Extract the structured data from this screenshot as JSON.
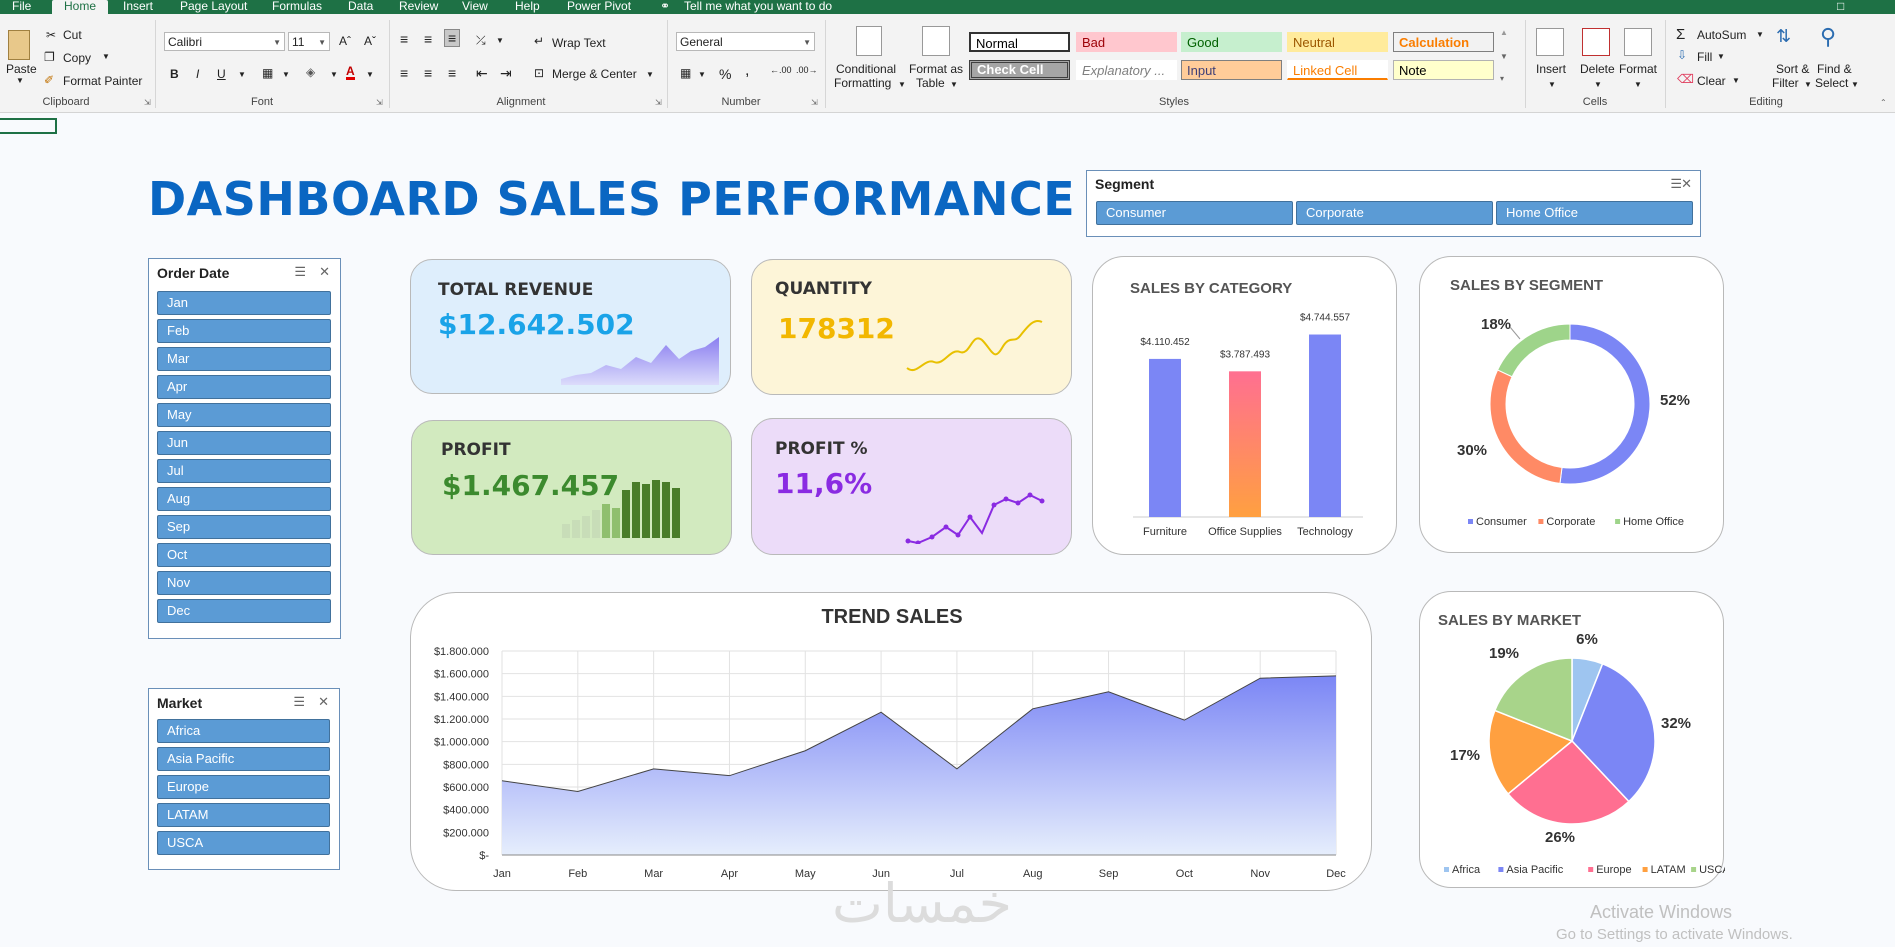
{
  "ribbon_tabs": [
    "File",
    "Home",
    "Insert",
    "Page Layout",
    "Formulas",
    "Data",
    "Review",
    "View",
    "Help",
    "Power Pivot"
  ],
  "tell_me": "Tell me what you want to do",
  "clipboard": {
    "paste": "Paste",
    "cut": "Cut",
    "copy": "Copy",
    "format_painter": "Format Painter",
    "group": "Clipboard"
  },
  "font": {
    "name": "Calibri",
    "size": "11",
    "group": "Font",
    "bold": "B",
    "italic": "I",
    "underline": "U"
  },
  "alignment": {
    "wrap": "Wrap Text",
    "merge": "Merge & Center",
    "group": "Alignment"
  },
  "number": {
    "format": "General",
    "percent": "%",
    "comma": ",",
    "group": "Number"
  },
  "styles": {
    "conditional": "Conditional",
    "conditional2": "Formatting",
    "format_table": "Format as",
    "format_table2": "Table",
    "group": "Styles",
    "cells": [
      {
        "label": "Normal",
        "bg": "#ffffff",
        "fg": "#000000",
        "border": "#333333"
      },
      {
        "label": "Bad",
        "bg": "#ffc7ce",
        "fg": "#9c0006",
        "border": "#ffc7ce"
      },
      {
        "label": "Good",
        "bg": "#c6efce",
        "fg": "#006100",
        "border": "#c6efce"
      },
      {
        "label": "Neutral",
        "bg": "#ffeb9c",
        "fg": "#9c5700",
        "border": "#ffeb9c"
      },
      {
        "label": "Calculation",
        "bg": "#f2f2f2",
        "fg": "#fa7d00",
        "border": "#7f7f7f"
      },
      {
        "label": "Check Cell",
        "bg": "#a5a5a5",
        "fg": "#ffffff",
        "border": "#3f3f3f"
      },
      {
        "label": "Explanatory ...",
        "bg": "#ffffff",
        "fg": "#7f7f7f",
        "border": "#ffffff"
      },
      {
        "label": "Input",
        "bg": "#ffcc99",
        "fg": "#3f3f76",
        "border": "#7f7f7f"
      },
      {
        "label": "Linked Cell",
        "bg": "#ffffff",
        "fg": "#fa7d00",
        "border": "#ffffff"
      },
      {
        "label": "Note",
        "bg": "#ffffcc",
        "fg": "#000000",
        "border": "#b2b2b2"
      }
    ]
  },
  "cells_group": {
    "insert": "Insert",
    "delete": "Delete",
    "format": "Format",
    "group": "Cells"
  },
  "editing": {
    "autosum": "AutoSum",
    "fill": "Fill",
    "clear": "Clear",
    "sort": "Sort &",
    "sort2": "Filter",
    "find": "Find &",
    "find2": "Select",
    "group": "Editing"
  },
  "dashboard_title": "DASHBOARD SALES PERFORMANCE",
  "segment_slicer": {
    "title": "Segment",
    "items": [
      "Consumer",
      "Corporate",
      "Home Office"
    ]
  },
  "order_date_slicer": {
    "title": "Order Date",
    "items": [
      "Jan",
      "Feb",
      "Mar",
      "Apr",
      "May",
      "Jun",
      "Jul",
      "Aug",
      "Sep",
      "Oct",
      "Nov",
      "Dec"
    ]
  },
  "market_slicer": {
    "title": "Market",
    "items": [
      "Africa",
      "Asia Pacific",
      "Europe",
      "LATAM",
      "USCA"
    ]
  },
  "kpis": {
    "revenue": {
      "label": "TOTAL REVENUE",
      "value": "$12.642.502",
      "color": "#1aa3e8",
      "bg": "#deeefc"
    },
    "quantity": {
      "label": "QUANTITY",
      "value": "178312",
      "color": "#f2b700",
      "bg": "#fdf5d8"
    },
    "profit": {
      "label": "PROFIT",
      "value": "$1.467.457",
      "color": "#3c8a2e",
      "bg": "#d2eabf"
    },
    "profit_pct": {
      "label": "PROFIT %",
      "value": "11,6%",
      "color": "#8a2be2",
      "bg": "#ecdcf9"
    }
  },
  "chart_data": [
    {
      "type": "bar",
      "title": "SALES BY CATEGORY",
      "categories": [
        "Furniture",
        "Office Supplies",
        "Technology"
      ],
      "values": [
        4110452,
        3787493,
        4744557
      ],
      "data_labels": [
        "$4.110.452",
        "$3.787.493",
        "$4.744.557"
      ],
      "colors": [
        "#7b86f5",
        "#ff6f91",
        "#7b86f5"
      ]
    },
    {
      "type": "pie",
      "title": "SALES BY SEGMENT",
      "donut": true,
      "labels": [
        "Consumer",
        "Corporate",
        "Home Office"
      ],
      "values": [
        52,
        30,
        18
      ],
      "data_labels": [
        "52%",
        "30%",
        "18%"
      ],
      "colors": [
        "#7b86f5",
        "#ff8a65",
        "#9ed48a"
      ]
    },
    {
      "type": "area",
      "title": "TREND SALES",
      "categories": [
        "Jan",
        "Feb",
        "Mar",
        "Apr",
        "May",
        "Jun",
        "Jul",
        "Aug",
        "Sep",
        "Oct",
        "Nov",
        "Dec"
      ],
      "values": [
        655000,
        560000,
        760000,
        700000,
        920000,
        1260000,
        760000,
        1290000,
        1440000,
        1190000,
        1560000,
        1580000
      ],
      "ylim": [
        0,
        1800000
      ],
      "yticks": [
        "$-",
        "$200.000",
        "$400.000",
        "$600.000",
        "$800.000",
        "$1.000.000",
        "$1.200.000",
        "$1.400.000",
        "$1.600.000",
        "$1.800.000"
      ],
      "grid": true
    },
    {
      "type": "pie",
      "title": "SALES BY MARKET",
      "labels": [
        "Africa",
        "Asia Pacific",
        "Europe",
        "LATAM",
        "USCA"
      ],
      "values": [
        6,
        32,
        26,
        17,
        19
      ],
      "data_labels": [
        "6%",
        "32%",
        "26%",
        "17%",
        "19%"
      ],
      "colors": [
        "#9ec5f0",
        "#7b86f5",
        "#ff6f91",
        "#ffa040",
        "#a8d48a"
      ]
    }
  ],
  "watermark": {
    "line1": "Activate Windows",
    "line2": "Go to Settings to activate Windows."
  },
  "logo_text": "خمسات"
}
